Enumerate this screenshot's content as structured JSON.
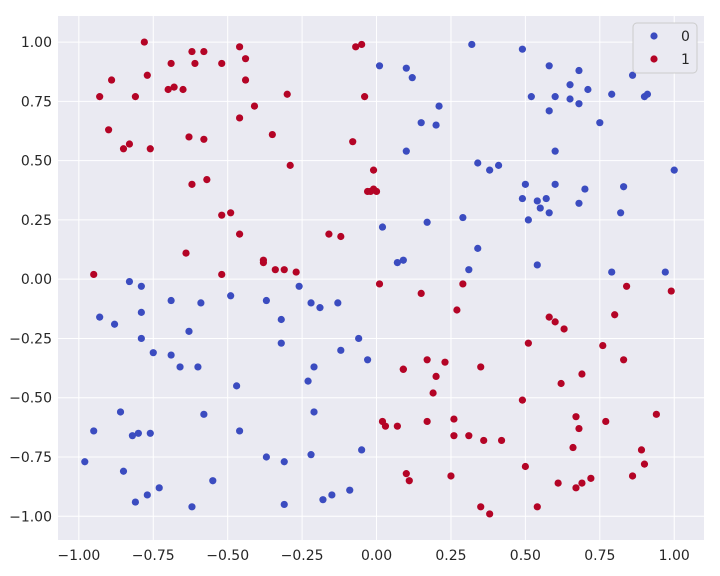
{
  "chart_data": {
    "type": "scatter",
    "title": "",
    "xlabel": "",
    "ylabel": "",
    "xlim": [
      -1.07,
      1.1
    ],
    "ylim": [
      -1.1,
      1.11
    ],
    "grid": true,
    "legend_position": "top-right",
    "x_ticks": [
      "−1.00",
      "−0.75",
      "−0.50",
      "−0.25",
      "0.00",
      "0.25",
      "0.50",
      "0.75",
      "1.00"
    ],
    "y_ticks": [
      "1.00",
      "0.75",
      "0.50",
      "0.25",
      "0.00",
      "−0.25",
      "−0.50",
      "−0.75",
      "−1.00"
    ],
    "series": [
      {
        "name": "0",
        "color": "#3b4cc0",
        "points": [
          [
            0.32,
            0.99
          ],
          [
            0.49,
            0.97
          ],
          [
            0.01,
            0.9
          ],
          [
            0.1,
            0.89
          ],
          [
            0.58,
            0.9
          ],
          [
            0.68,
            0.88
          ],
          [
            0.12,
            0.85
          ],
          [
            0.86,
            0.86
          ],
          [
            0.65,
            0.82
          ],
          [
            0.71,
            0.8
          ],
          [
            0.79,
            0.78
          ],
          [
            0.91,
            0.78
          ],
          [
            0.9,
            0.77
          ],
          [
            0.52,
            0.77
          ],
          [
            0.6,
            0.77
          ],
          [
            0.65,
            0.76
          ],
          [
            0.68,
            0.74
          ],
          [
            0.21,
            0.73
          ],
          [
            0.58,
            0.71
          ],
          [
            0.15,
            0.66
          ],
          [
            0.2,
            0.65
          ],
          [
            0.75,
            0.66
          ],
          [
            0.1,
            0.54
          ],
          [
            0.6,
            0.54
          ],
          [
            0.34,
            0.49
          ],
          [
            0.41,
            0.48
          ],
          [
            0.38,
            0.46
          ],
          [
            1.0,
            0.46
          ],
          [
            0.5,
            0.4
          ],
          [
            0.6,
            0.4
          ],
          [
            0.7,
            0.38
          ],
          [
            0.83,
            0.39
          ],
          [
            0.49,
            0.34
          ],
          [
            0.54,
            0.33
          ],
          [
            0.57,
            0.34
          ],
          [
            0.55,
            0.3
          ],
          [
            0.68,
            0.32
          ],
          [
            0.58,
            0.28
          ],
          [
            0.82,
            0.28
          ],
          [
            0.51,
            0.25
          ],
          [
            0.29,
            0.26
          ],
          [
            0.17,
            0.24
          ],
          [
            0.02,
            0.22
          ],
          [
            0.34,
            0.13
          ],
          [
            0.07,
            0.07
          ],
          [
            0.09,
            0.08
          ],
          [
            0.54,
            0.06
          ],
          [
            0.31,
            0.04
          ],
          [
            0.79,
            0.03
          ],
          [
            0.97,
            0.03
          ],
          [
            -0.83,
            -0.01
          ],
          [
            -0.79,
            -0.03
          ],
          [
            -0.26,
            -0.03
          ],
          [
            -0.69,
            -0.09
          ],
          [
            -0.59,
            -0.1
          ],
          [
            -0.49,
            -0.07
          ],
          [
            -0.37,
            -0.09
          ],
          [
            -0.22,
            -0.1
          ],
          [
            -0.19,
            -0.12
          ],
          [
            -0.13,
            -0.1
          ],
          [
            -0.79,
            -0.14
          ],
          [
            -0.93,
            -0.16
          ],
          [
            -0.88,
            -0.19
          ],
          [
            -0.32,
            -0.17
          ],
          [
            -0.63,
            -0.22
          ],
          [
            -0.79,
            -0.25
          ],
          [
            -0.06,
            -0.25
          ],
          [
            -0.32,
            -0.27
          ],
          [
            -0.12,
            -0.3
          ],
          [
            -0.75,
            -0.31
          ],
          [
            -0.69,
            -0.32
          ],
          [
            -0.03,
            -0.34
          ],
          [
            -0.66,
            -0.37
          ],
          [
            -0.6,
            -0.37
          ],
          [
            -0.21,
            -0.37
          ],
          [
            -0.23,
            -0.43
          ],
          [
            -0.47,
            -0.45
          ],
          [
            -0.86,
            -0.56
          ],
          [
            -0.58,
            -0.57
          ],
          [
            -0.21,
            -0.56
          ],
          [
            -0.95,
            -0.64
          ],
          [
            -0.82,
            -0.66
          ],
          [
            -0.8,
            -0.65
          ],
          [
            -0.76,
            -0.65
          ],
          [
            -0.46,
            -0.64
          ],
          [
            -0.05,
            -0.72
          ],
          [
            -0.22,
            -0.74
          ],
          [
            -0.37,
            -0.75
          ],
          [
            -0.31,
            -0.77
          ],
          [
            -0.98,
            -0.77
          ],
          [
            -0.85,
            -0.81
          ],
          [
            -0.73,
            -0.88
          ],
          [
            -0.55,
            -0.85
          ],
          [
            -0.77,
            -0.91
          ],
          [
            -0.09,
            -0.89
          ],
          [
            -0.15,
            -0.91
          ],
          [
            -0.18,
            -0.93
          ],
          [
            -0.81,
            -0.94
          ],
          [
            -0.31,
            -0.95
          ],
          [
            -0.62,
            -0.96
          ]
        ]
      },
      {
        "name": "1",
        "color": "#b40426",
        "points": [
          [
            -0.78,
            1.0
          ],
          [
            -0.46,
            0.98
          ],
          [
            -0.07,
            0.98
          ],
          [
            -0.05,
            0.99
          ],
          [
            -0.62,
            0.96
          ],
          [
            -0.58,
            0.96
          ],
          [
            -0.44,
            0.93
          ],
          [
            -0.69,
            0.91
          ],
          [
            -0.61,
            0.91
          ],
          [
            -0.52,
            0.91
          ],
          [
            -0.77,
            0.86
          ],
          [
            -0.89,
            0.84
          ],
          [
            -0.44,
            0.84
          ],
          [
            -0.68,
            0.81
          ],
          [
            -0.65,
            0.8
          ],
          [
            -0.7,
            0.8
          ],
          [
            -0.93,
            0.77
          ],
          [
            -0.81,
            0.77
          ],
          [
            -0.3,
            0.78
          ],
          [
            -0.04,
            0.77
          ],
          [
            -0.41,
            0.73
          ],
          [
            -0.46,
            0.68
          ],
          [
            -0.9,
            0.63
          ],
          [
            -0.35,
            0.61
          ],
          [
            -0.63,
            0.6
          ],
          [
            -0.58,
            0.59
          ],
          [
            -0.83,
            0.57
          ],
          [
            -0.08,
            0.58
          ],
          [
            -0.85,
            0.55
          ],
          [
            -0.76,
            0.55
          ],
          [
            -0.29,
            0.48
          ],
          [
            -0.01,
            0.46
          ],
          [
            -0.57,
            0.42
          ],
          [
            -0.62,
            0.4
          ],
          [
            -0.01,
            0.38
          ],
          [
            -0.02,
            0.37
          ],
          [
            -0.03,
            0.37
          ],
          [
            0.0,
            0.37
          ],
          [
            -0.52,
            0.27
          ],
          [
            -0.49,
            0.28
          ],
          [
            -0.46,
            0.19
          ],
          [
            -0.16,
            0.19
          ],
          [
            -0.12,
            0.18
          ],
          [
            -0.64,
            0.11
          ],
          [
            -0.38,
            0.08
          ],
          [
            -0.38,
            0.07
          ],
          [
            -0.34,
            0.04
          ],
          [
            -0.31,
            0.04
          ],
          [
            -0.27,
            0.03
          ],
          [
            -0.95,
            0.02
          ],
          [
            -0.52,
            0.02
          ],
          [
            0.01,
            -0.02
          ],
          [
            0.29,
            -0.02
          ],
          [
            0.84,
            -0.03
          ],
          [
            0.99,
            -0.05
          ],
          [
            0.15,
            -0.06
          ],
          [
            0.27,
            -0.13
          ],
          [
            0.58,
            -0.16
          ],
          [
            0.8,
            -0.15
          ],
          [
            0.6,
            -0.18
          ],
          [
            0.63,
            -0.21
          ],
          [
            0.51,
            -0.27
          ],
          [
            0.76,
            -0.28
          ],
          [
            0.83,
            -0.34
          ],
          [
            0.17,
            -0.34
          ],
          [
            0.23,
            -0.35
          ],
          [
            0.35,
            -0.37
          ],
          [
            0.09,
            -0.38
          ],
          [
            0.69,
            -0.4
          ],
          [
            0.2,
            -0.41
          ],
          [
            0.62,
            -0.44
          ],
          [
            0.19,
            -0.48
          ],
          [
            0.49,
            -0.51
          ],
          [
            0.94,
            -0.57
          ],
          [
            0.26,
            -0.59
          ],
          [
            0.02,
            -0.6
          ],
          [
            0.17,
            -0.6
          ],
          [
            0.67,
            -0.58
          ],
          [
            0.77,
            -0.6
          ],
          [
            0.03,
            -0.62
          ],
          [
            0.07,
            -0.62
          ],
          [
            0.68,
            -0.63
          ],
          [
            0.26,
            -0.66
          ],
          [
            0.31,
            -0.66
          ],
          [
            0.36,
            -0.68
          ],
          [
            0.42,
            -0.68
          ],
          [
            0.66,
            -0.71
          ],
          [
            0.89,
            -0.72
          ],
          [
            0.5,
            -0.79
          ],
          [
            0.9,
            -0.78
          ],
          [
            0.1,
            -0.82
          ],
          [
            0.11,
            -0.85
          ],
          [
            0.25,
            -0.83
          ],
          [
            0.61,
            -0.86
          ],
          [
            0.69,
            -0.86
          ],
          [
            0.86,
            -0.83
          ],
          [
            0.67,
            -0.88
          ],
          [
            0.35,
            -0.96
          ],
          [
            0.54,
            -0.96
          ],
          [
            0.38,
            -0.99
          ],
          [
            0.72,
            -0.84
          ],
          [
            0.09,
            -0.38
          ]
        ]
      }
    ]
  }
}
